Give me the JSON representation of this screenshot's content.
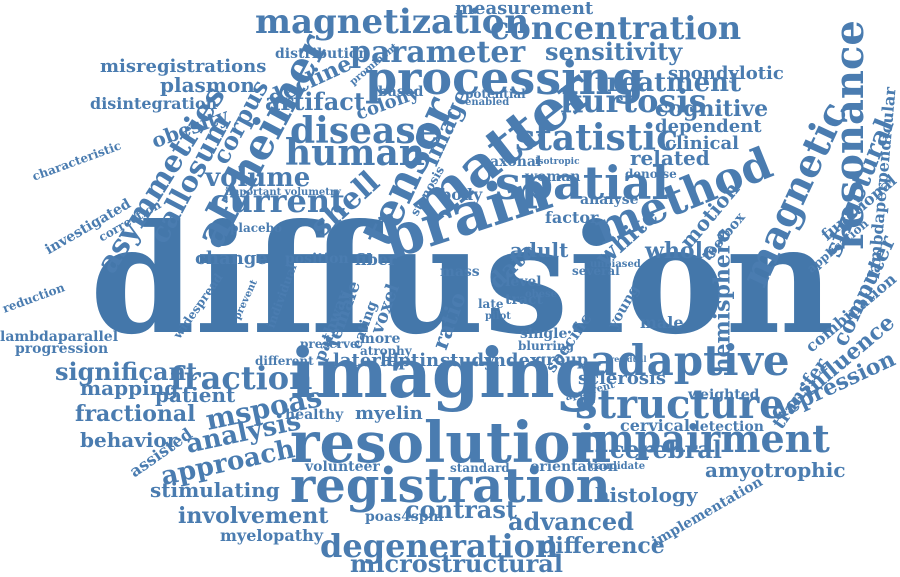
{
  "colors": {
    "word": "#4a7cb0",
    "background": "#ffffff"
  },
  "words": [
    {
      "t": "diffusion",
      "c": "#4477aa"
    },
    {
      "t": "imaging",
      "c": "#4a7cb0"
    },
    {
      "t": "resolution",
      "c": "#4a7cb0"
    },
    {
      "t": "registration",
      "c": "#4a7cb0"
    },
    {
      "t": "brain",
      "c": "#4a7cb0"
    },
    {
      "t": "matter",
      "c": "#4a7cb0"
    },
    {
      "t": "processing",
      "c": "#4a7cb0"
    },
    {
      "t": "magnetization",
      "c": "#4a7cb0"
    },
    {
      "t": "concentration",
      "c": "#4a7cb0"
    },
    {
      "t": "parameter",
      "c": "#4a7cb0"
    },
    {
      "t": "measurement",
      "c": "#4a7cb0"
    },
    {
      "t": "sensitivity",
      "c": "#4a7cb0"
    },
    {
      "t": "spondylotic",
      "c": "#4a7cb0"
    },
    {
      "t": "treatment",
      "c": "#4a7cb0"
    },
    {
      "t": "alzheimer",
      "c": "#4a7cb0"
    },
    {
      "t": "spatial",
      "c": "#4a7cb0"
    },
    {
      "t": "method",
      "c": "#4a7cb0"
    },
    {
      "t": "tensor",
      "c": "#4a7cb0"
    },
    {
      "t": "adaptive",
      "c": "#4a7cb0"
    },
    {
      "t": "structure",
      "c": "#4a7cb0"
    },
    {
      "t": "impairment",
      "c": "#4a7cb0"
    },
    {
      "t": "resonance",
      "c": "#4a7cb0"
    },
    {
      "t": "magnetic",
      "c": "#4a7cb0"
    },
    {
      "t": "statistic",
      "c": "#4a7cb0"
    },
    {
      "t": "kurtosis",
      "c": "#4a7cb0"
    },
    {
      "t": "cognitive",
      "c": "#4a7cb0"
    },
    {
      "t": "dependent",
      "c": "#4a7cb0"
    },
    {
      "t": "clinical",
      "c": "#4a7cb0"
    },
    {
      "t": "related",
      "c": "#4a7cb0"
    },
    {
      "t": "disease",
      "c": "#4a7cb0"
    },
    {
      "t": "human",
      "c": "#4a7cb0"
    },
    {
      "t": "artifact",
      "c": "#4a7cb0"
    },
    {
      "t": "decline",
      "c": "#4a7cb0"
    },
    {
      "t": "colony",
      "c": "#4a7cb0"
    },
    {
      "t": "based",
      "c": "#4a7cb0"
    },
    {
      "t": "potential",
      "c": "#4a7cb0"
    },
    {
      "t": "enabled",
      "c": "#4a7cb0"
    },
    {
      "t": "prominent",
      "c": "#4a7cb0"
    },
    {
      "t": "distribution",
      "c": "#4a7cb0"
    },
    {
      "t": "misregistrations",
      "c": "#4a7cb0"
    },
    {
      "t": "plasmon",
      "c": "#4a7cb0"
    },
    {
      "t": "disintegration",
      "c": "#4a7cb0"
    },
    {
      "t": "obesity",
      "c": "#4a7cb0"
    },
    {
      "t": "corpus",
      "c": "#4a7cb0"
    },
    {
      "t": "asymmetries",
      "c": "#4a7cb0"
    },
    {
      "t": "callosum",
      "c": "#4a7cb0"
    },
    {
      "t": "volume",
      "c": "#4a7cb0"
    },
    {
      "t": "current",
      "c": "#4a7cb0"
    },
    {
      "t": "shell",
      "c": "#4a7cb0"
    },
    {
      "t": "image",
      "c": "#4a7cb0"
    },
    {
      "t": "characteristic",
      "c": "#4a7cb0"
    },
    {
      "t": "investigated",
      "c": "#4a7cb0"
    },
    {
      "t": "correction",
      "c": "#4a7cb0"
    },
    {
      "t": "important volumetry",
      "c": "#4a7cb0"
    },
    {
      "t": "placebo",
      "c": "#4a7cb0"
    },
    {
      "t": "change",
      "c": "#4a7cb0"
    },
    {
      "t": "position",
      "c": "#4a7cb0"
    },
    {
      "t": "fiber",
      "c": "#4a7cb0"
    },
    {
      "t": "axonal",
      "c": "#4a7cb0"
    },
    {
      "t": "isotropic",
      "c": "#4a7cb0"
    },
    {
      "t": "stenosis",
      "c": "#4a7cb0"
    },
    {
      "t": "woman",
      "c": "#4a7cb0"
    },
    {
      "t": "analyse",
      "c": "#4a7cb0"
    },
    {
      "t": "body",
      "c": "#4a7cb0"
    },
    {
      "t": "factor",
      "c": "#4a7cb0"
    },
    {
      "t": "white",
      "c": "#4a7cb0"
    },
    {
      "t": "motion",
      "c": "#4a7cb0"
    },
    {
      "t": "toolbox",
      "c": "#4a7cb0"
    },
    {
      "t": "denoise",
      "c": "#4a7cb0"
    },
    {
      "t": "whole",
      "c": "#4a7cb0"
    },
    {
      "t": "adult",
      "c": "#4a7cb0"
    },
    {
      "t": "data",
      "c": "#4a7cb0"
    },
    {
      "t": "structural",
      "c": "#4a7cb0"
    },
    {
      "t": "functional",
      "c": "#4a7cb0"
    },
    {
      "t": "application",
      "c": "#4a7cb0"
    },
    {
      "t": "lambdaperpendicular",
      "c": "#4a7cb0"
    },
    {
      "t": "computer",
      "c": "#4a7cb0"
    },
    {
      "t": "combination",
      "c": "#4a7cb0"
    },
    {
      "t": "influence",
      "c": "#4a7cb0"
    },
    {
      "t": "depression",
      "c": "#4a7cb0"
    },
    {
      "t": "transfer",
      "c": "#4a7cb0"
    },
    {
      "t": "reduction",
      "c": "#4a7cb0"
    },
    {
      "t": "lambdaparallel",
      "c": "#4a7cb0"
    },
    {
      "t": "progression",
      "c": "#4a7cb0"
    },
    {
      "t": "widespread",
      "c": "#4a7cb0"
    },
    {
      "t": "prevent",
      "c": "#4a7cb0"
    },
    {
      "t": "individual",
      "c": "#4a7cb0"
    },
    {
      "t": "pathway",
      "c": "#4a7cb0"
    },
    {
      "t": "female",
      "c": "#4a7cb0"
    },
    {
      "t": "voxel",
      "c": "#4a7cb0"
    },
    {
      "t": "ratio",
      "c": "#4a7cb0"
    },
    {
      "t": "eating",
      "c": "#4a7cb0"
    },
    {
      "t": "mass",
      "c": "#4a7cb0"
    },
    {
      "t": "level",
      "c": "#4a7cb0"
    },
    {
      "t": "tract",
      "c": "#4a7cb0"
    },
    {
      "t": "late",
      "c": "#4a7cb0"
    },
    {
      "t": "pilot",
      "c": "#4a7cb0"
    },
    {
      "t": "obese",
      "c": "#4a7cb0"
    },
    {
      "t": "unbiased",
      "c": "#4a7cb0"
    },
    {
      "t": "several",
      "c": "#4a7cb0"
    },
    {
      "t": "young",
      "c": "#4a7cb0"
    },
    {
      "t": "male",
      "c": "#4a7cb0"
    },
    {
      "t": "hemisphere",
      "c": "#4a7cb0"
    },
    {
      "t": "specific",
      "c": "#4a7cb0"
    },
    {
      "t": "single",
      "c": "#4a7cb0"
    },
    {
      "t": "blurring",
      "c": "#4a7cb0"
    },
    {
      "t": "more",
      "c": "#4a7cb0"
    },
    {
      "t": "atrophy",
      "c": "#4a7cb0"
    },
    {
      "t": "preserve",
      "c": "#4a7cb0"
    },
    {
      "t": "different",
      "c": "#4a7cb0"
    },
    {
      "t": "significant",
      "c": "#4a7cb0"
    },
    {
      "t": "fraction",
      "c": "#4a7cb0"
    },
    {
      "t": "mapping",
      "c": "#4a7cb0"
    },
    {
      "t": "patient",
      "c": "#4a7cb0"
    },
    {
      "t": "fractional",
      "c": "#4a7cb0"
    },
    {
      "t": "behavior",
      "c": "#4a7cb0"
    },
    {
      "t": "mspoas",
      "c": "#4a7cb0"
    },
    {
      "t": "analysis",
      "c": "#4a7cb0"
    },
    {
      "t": "assisted",
      "c": "#4a7cb0"
    },
    {
      "t": "approach",
      "c": "#4a7cb0"
    },
    {
      "t": "stimulating",
      "c": "#4a7cb0"
    },
    {
      "t": "involvement",
      "c": "#4a7cb0"
    },
    {
      "t": "myelopathy",
      "c": "#4a7cb0"
    },
    {
      "t": "lateral",
      "c": "#4a7cb0"
    },
    {
      "t": "leptin",
      "c": "#4a7cb0"
    },
    {
      "t": "study",
      "c": "#4a7cb0"
    },
    {
      "t": "index",
      "c": "#4a7cb0"
    },
    {
      "t": "group",
      "c": "#4a7cb0"
    },
    {
      "t": "sclerosis",
      "c": "#4a7cb0"
    },
    {
      "t": "weighted",
      "c": "#4a7cb0"
    },
    {
      "t": "apparent",
      "c": "#4a7cb0"
    },
    {
      "t": "myelin",
      "c": "#4a7cb0"
    },
    {
      "t": "healthy",
      "c": "#4a7cb0"
    },
    {
      "t": "cervical",
      "c": "#4a7cb0"
    },
    {
      "t": "detection",
      "c": "#4a7cb0"
    },
    {
      "t": "volunteer",
      "c": "#4a7cb0"
    },
    {
      "t": "standard",
      "c": "#4a7cb0"
    },
    {
      "t": "orientation",
      "c": "#4a7cb0"
    },
    {
      "t": "candidate",
      "c": "#4a7cb0"
    },
    {
      "t": "cerebral",
      "c": "#4a7cb0"
    },
    {
      "t": "amyotrophic",
      "c": "#4a7cb0"
    },
    {
      "t": "histology",
      "c": "#4a7cb0"
    },
    {
      "t": "implementation",
      "c": "#4a7cb0"
    },
    {
      "t": "poas4spm",
      "c": "#4a7cb0"
    },
    {
      "t": "contrast",
      "c": "#4a7cb0"
    },
    {
      "t": "advanced",
      "c": "#4a7cb0"
    },
    {
      "t": "degeneration",
      "c": "#4a7cb0"
    },
    {
      "t": "difference",
      "c": "#4a7cb0"
    },
    {
      "t": "microstructural",
      "c": "#4a7cb0"
    },
    {
      "t": "residual",
      "c": "#4a7cb0"
    }
  ]
}
